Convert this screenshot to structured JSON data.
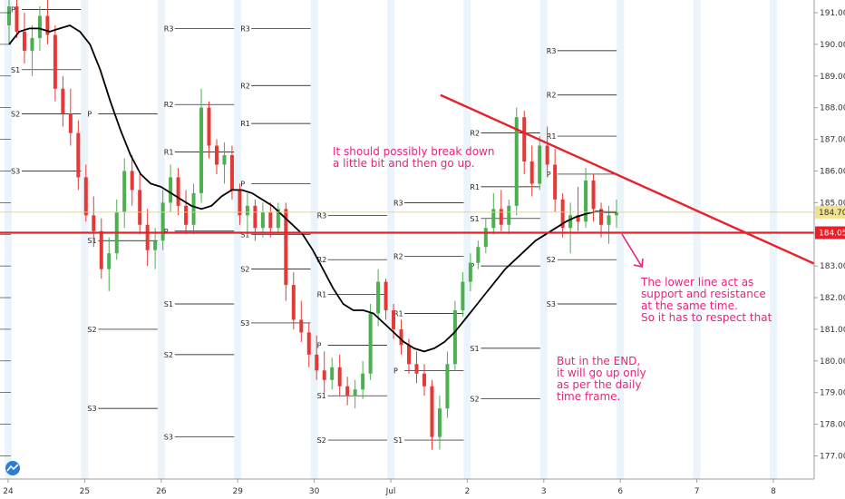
{
  "chart_data": {
    "type": "candlestick",
    "title": "",
    "xlabel": "",
    "ylabel": "",
    "ylim": [
      176.5,
      191.4
    ],
    "x_ticks": [
      {
        "label": "24",
        "day": 0
      },
      {
        "label": "25",
        "day": 1
      },
      {
        "label": "26",
        "day": 2
      },
      {
        "label": "29",
        "day": 3
      },
      {
        "label": "30",
        "day": 4
      },
      {
        "label": "Jul",
        "day": 5
      },
      {
        "label": "2",
        "day": 6
      },
      {
        "label": "3",
        "day": 7
      },
      {
        "label": "6",
        "day": 8
      },
      {
        "label": "7",
        "day": 9
      },
      {
        "label": "8",
        "day": 10
      }
    ],
    "y_ticks": [
      "191.00",
      "190.00",
      "189.00",
      "188.00",
      "187.00",
      "186.00",
      "185.00",
      "184.00",
      "183.00",
      "182.00",
      "181.00",
      "180.00",
      "179.00",
      "178.00",
      "177.00"
    ],
    "price_badges": [
      {
        "value": 184.7,
        "label": "184.70",
        "color": "#f2e38a",
        "text_color": "#333333"
      },
      {
        "value": 184.05,
        "label": "184.05",
        "color": "#e8202a",
        "text_color": "#ffffff"
      }
    ],
    "colors": {
      "up": "#4caf50",
      "down": "#e53935",
      "ma": "#000000",
      "trendline": "#e8202a",
      "annotation": "#e8237f",
      "pivot": "#000000",
      "session_band": "#dbeaf7"
    },
    "horizontal_line": {
      "value": 184.05
    },
    "trendline": {
      "start": {
        "day": 5.65,
        "value": 188.4
      },
      "end": {
        "day": 10.6,
        "value": 183.0
      }
    },
    "pivots": [
      {
        "label": "P",
        "value": 191.1,
        "day": 0
      },
      {
        "label": "S1",
        "value": 189.2,
        "day": 0
      },
      {
        "label": "S2",
        "value": 187.8,
        "day": 0
      },
      {
        "label": "S3",
        "value": 186.0,
        "day": 0
      },
      {
        "label": "R3",
        "value": 190.5,
        "day": 2
      },
      {
        "label": "R2",
        "value": 188.1,
        "day": 2
      },
      {
        "label": "P",
        "value": 187.8,
        "day": 1
      },
      {
        "label": "R1",
        "value": 186.6,
        "day": 2
      },
      {
        "label": "S1",
        "value": 183.8,
        "day": 1
      },
      {
        "label": "S2",
        "value": 181.0,
        "day": 1
      },
      {
        "label": "S3",
        "value": 178.5,
        "day": 1
      },
      {
        "label": "P",
        "value": 184.1,
        "day": 2
      },
      {
        "label": "S1",
        "value": 181.8,
        "day": 2
      },
      {
        "label": "S2",
        "value": 180.2,
        "day": 2
      },
      {
        "label": "S3",
        "value": 177.6,
        "day": 2
      },
      {
        "label": "R3",
        "value": 190.5,
        "day": 3
      },
      {
        "label": "R2",
        "value": 188.7,
        "day": 3
      },
      {
        "label": "R1",
        "value": 187.5,
        "day": 3
      },
      {
        "label": "P",
        "value": 185.6,
        "day": 3
      },
      {
        "label": "S1",
        "value": 184.0,
        "day": 3
      },
      {
        "label": "S2",
        "value": 182.9,
        "day": 3
      },
      {
        "label": "S3",
        "value": 181.2,
        "day": 3
      },
      {
        "label": "R3",
        "value": 184.6,
        "day": 4
      },
      {
        "label": "R2",
        "value": 183.2,
        "day": 4
      },
      {
        "label": "R1",
        "value": 182.1,
        "day": 4
      },
      {
        "label": "P",
        "value": 180.5,
        "day": 4
      },
      {
        "label": "S1",
        "value": 178.9,
        "day": 4
      },
      {
        "label": "S2",
        "value": 177.5,
        "day": 4
      },
      {
        "label": "R3",
        "value": 185.0,
        "day": 5
      },
      {
        "label": "R2",
        "value": 183.3,
        "day": 5
      },
      {
        "label": "R1",
        "value": 181.5,
        "day": 5
      },
      {
        "label": "P",
        "value": 179.7,
        "day": 5
      },
      {
        "label": "S1",
        "value": 177.5,
        "day": 5
      },
      {
        "label": "R3",
        "value": 189.8,
        "day": 7
      },
      {
        "label": "R2",
        "value": 188.4,
        "day": 7
      },
      {
        "label": "R1",
        "value": 187.1,
        "day": 7
      },
      {
        "label": "P",
        "value": 185.9,
        "day": 7
      },
      {
        "label": "S1",
        "value": 184.5,
        "day": 6
      },
      {
        "label": "S2",
        "value": 183.2,
        "day": 7
      },
      {
        "label": "S3",
        "value": 181.8,
        "day": 7
      },
      {
        "label": "P",
        "value": 183.0,
        "day": 6
      },
      {
        "label": "S1",
        "value": 180.4,
        "day": 6
      },
      {
        "label": "S2",
        "value": 178.8,
        "day": 6
      },
      {
        "label": "R2",
        "value": 187.2,
        "day": 6
      },
      {
        "label": "R1",
        "value": 185.5,
        "day": 6
      }
    ],
    "series": [
      {
        "values": [
          [
            190.6,
            192.0,
            190.0,
            191.2
          ],
          [
            191.2,
            192.0,
            190.2,
            190.4
          ],
          [
            190.4,
            191.0,
            189.4,
            189.8
          ],
          [
            189.8,
            190.6,
            189.0,
            190.2
          ],
          [
            190.2,
            191.2,
            189.8,
            190.9
          ],
          [
            190.9,
            191.5,
            190.0,
            190.3
          ],
          [
            190.3,
            190.6,
            188.2,
            188.6
          ],
          [
            188.6,
            189.0,
            187.4,
            187.8
          ],
          [
            187.8,
            188.6,
            186.8,
            187.2
          ],
          [
            187.2,
            187.6,
            185.4,
            185.8
          ],
          [
            185.8,
            186.2,
            184.4,
            184.6
          ],
          [
            184.6,
            185.2,
            183.6,
            184.1
          ],
          [
            184.1,
            184.5,
            182.6,
            182.9
          ],
          [
            182.9,
            183.9,
            182.2,
            183.4
          ],
          [
            183.4,
            185.1,
            183.2,
            184.7
          ],
          [
            184.7,
            186.4,
            184.2,
            186.0
          ],
          [
            186.0,
            186.5,
            184.9,
            185.4
          ],
          [
            185.4,
            185.9,
            184.0,
            184.3
          ],
          [
            184.3,
            184.8,
            183.0,
            183.5
          ],
          [
            183.5,
            184.2,
            182.9,
            183.8
          ],
          [
            183.8,
            185.4,
            183.5,
            185.0
          ],
          [
            185.0,
            186.2,
            184.7,
            185.8
          ],
          [
            185.8,
            186.1,
            184.6,
            184.9
          ],
          [
            184.9,
            185.4,
            184.0,
            184.3
          ],
          [
            184.3,
            185.6,
            184.0,
            185.3
          ],
          [
            185.3,
            188.6,
            185.0,
            188.0
          ],
          [
            188.0,
            188.2,
            186.4,
            186.8
          ],
          [
            186.8,
            187.0,
            185.9,
            186.2
          ],
          [
            186.2,
            186.9,
            185.6,
            186.5
          ],
          [
            186.5,
            186.8,
            185.1,
            185.4
          ],
          [
            185.4,
            185.6,
            184.3,
            184.6
          ],
          [
            184.6,
            185.3,
            184.0,
            184.9
          ],
          [
            184.9,
            185.1,
            183.8,
            184.2
          ],
          [
            184.2,
            185.0,
            183.9,
            184.7
          ],
          [
            184.7,
            185.0,
            183.9,
            184.2
          ],
          [
            184.2,
            185.0,
            184.0,
            184.8
          ],
          [
            184.8,
            185.0,
            181.9,
            182.4
          ],
          [
            182.4,
            182.8,
            181.0,
            181.3
          ],
          [
            181.3,
            181.9,
            180.6,
            180.9
          ],
          [
            180.9,
            181.2,
            179.8,
            180.2
          ],
          [
            180.2,
            180.8,
            179.4,
            179.7
          ],
          [
            179.7,
            180.3,
            179.0,
            179.4
          ],
          [
            179.4,
            180.1,
            179.1,
            179.8
          ],
          [
            179.8,
            180.2,
            178.9,
            179.2
          ],
          [
            179.2,
            179.5,
            178.6,
            178.9
          ],
          [
            178.9,
            179.4,
            178.5,
            179.1
          ],
          [
            179.1,
            180.0,
            178.8,
            179.6
          ],
          [
            179.6,
            181.8,
            179.4,
            181.5
          ],
          [
            181.5,
            182.9,
            181.1,
            182.5
          ],
          [
            182.5,
            182.6,
            181.3,
            181.6
          ],
          [
            181.6,
            181.8,
            180.7,
            181.0
          ],
          [
            181.0,
            181.3,
            180.2,
            180.5
          ],
          [
            180.5,
            180.7,
            179.6,
            179.9
          ],
          [
            179.9,
            180.3,
            179.3,
            179.6
          ],
          [
            179.6,
            179.9,
            178.9,
            179.2
          ],
          [
            179.2,
            179.4,
            177.2,
            177.6
          ],
          [
            177.6,
            178.9,
            177.2,
            178.5
          ],
          [
            178.5,
            180.3,
            178.2,
            179.9
          ],
          [
            179.9,
            181.9,
            179.7,
            181.6
          ],
          [
            181.6,
            182.8,
            181.4,
            182.5
          ],
          [
            182.5,
            183.4,
            182.2,
            183.1
          ],
          [
            183.1,
            183.8,
            182.9,
            183.6
          ],
          [
            183.6,
            184.5,
            183.4,
            184.2
          ],
          [
            184.2,
            185.3,
            184.0,
            184.8
          ],
          [
            184.8,
            185.4,
            184.1,
            184.3
          ],
          [
            184.3,
            185.1,
            184.0,
            184.9
          ],
          [
            184.9,
            188.0,
            184.6,
            187.7
          ],
          [
            187.7,
            187.9,
            185.9,
            186.3
          ],
          [
            186.3,
            186.8,
            185.2,
            185.6
          ],
          [
            185.6,
            187.1,
            185.4,
            186.8
          ],
          [
            186.8,
            187.4,
            185.8,
            186.2
          ],
          [
            186.2,
            186.7,
            184.7,
            185.1
          ],
          [
            185.1,
            185.3,
            183.9,
            184.2
          ],
          [
            184.2,
            185.0,
            183.4,
            184.6
          ],
          [
            184.6,
            185.5,
            184.1,
            184.4
          ],
          [
            184.4,
            186.1,
            184.2,
            185.7
          ],
          [
            185.7,
            185.9,
            184.4,
            184.8
          ],
          [
            184.8,
            185.0,
            183.9,
            184.3
          ],
          [
            184.3,
            184.9,
            183.7,
            184.6
          ],
          [
            184.6,
            185.1,
            184.2,
            184.7
          ]
        ]
      },
      {
        "values": [
          190.0,
          190.4,
          190.5,
          190.5,
          190.4,
          190.5,
          190.6,
          190.4,
          190.0,
          189.2,
          188.2,
          187.3,
          186.5,
          185.9,
          185.6,
          185.5,
          185.3,
          185.1,
          184.9,
          184.8,
          184.9,
          185.2,
          185.4,
          185.4,
          185.3,
          185.1,
          184.9,
          184.6,
          184.3,
          184.0,
          183.5,
          182.9,
          182.3,
          181.8,
          181.6,
          181.6,
          181.5,
          181.2,
          180.9,
          180.6,
          180.4,
          180.3,
          180.4,
          180.6,
          180.9,
          181.3,
          181.7,
          182.1,
          182.5,
          182.9,
          183.2,
          183.5,
          183.8,
          184.0,
          184.2,
          184.4,
          184.55,
          184.65,
          184.72,
          184.7,
          184.7
        ]
      }
    ],
    "annotations": [
      {
        "text": [
          "It should possibly break down",
          "a little bit and then go up."
        ]
      },
      {
        "text": [
          "The lower line act as",
          "support and resistance",
          "at the same time.",
          "So it has to respect that"
        ]
      },
      {
        "text": [
          "But in the END,",
          "it will go up only",
          "as per the daily",
          "time frame."
        ]
      }
    ]
  }
}
